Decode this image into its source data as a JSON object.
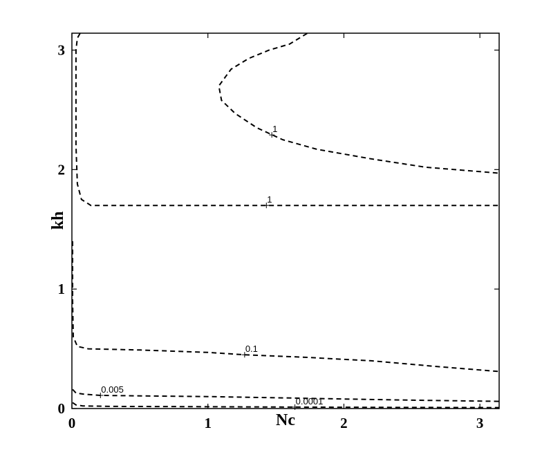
{
  "chart_data": {
    "type": "contour",
    "xlabel": "Nc",
    "ylabel": "kh",
    "xlim": [
      0,
      3.1416
    ],
    "ylim": [
      0,
      3.1416
    ],
    "x_ticks": [
      0,
      1,
      2,
      3
    ],
    "y_ticks": [
      0,
      1,
      2,
      3
    ],
    "x_tick_labels": [
      "0",
      "1",
      "2",
      "3"
    ],
    "y_tick_labels": [
      "0",
      "1",
      "2",
      "3"
    ],
    "line_style": "dashed",
    "grid": false,
    "contours": [
      {
        "level": "1",
        "label_at": [
          1.47,
          2.29
        ],
        "points": [
          [
            1.73,
            3.14
          ],
          [
            1.6,
            3.05
          ],
          [
            1.45,
            3.0
          ],
          [
            1.3,
            2.93
          ],
          [
            1.17,
            2.84
          ],
          [
            1.08,
            2.7
          ],
          [
            1.1,
            2.58
          ],
          [
            1.2,
            2.47
          ],
          [
            1.36,
            2.35
          ],
          [
            1.55,
            2.25
          ],
          [
            1.8,
            2.17
          ],
          [
            2.2,
            2.09
          ],
          [
            2.6,
            2.02
          ],
          [
            3.14,
            1.97
          ]
        ]
      },
      {
        "level": "1",
        "label_at": [
          1.43,
          1.7
        ],
        "points": [
          [
            0.06,
            3.14
          ],
          [
            0.04,
            3.1
          ],
          [
            0.03,
            3.0
          ],
          [
            0.03,
            2.6
          ],
          [
            0.03,
            2.2
          ],
          [
            0.04,
            1.88
          ],
          [
            0.07,
            1.75
          ],
          [
            0.14,
            1.7
          ],
          [
            0.5,
            1.7
          ],
          [
            1.43,
            1.7
          ],
          [
            2.3,
            1.7
          ],
          [
            3.14,
            1.7
          ]
        ]
      },
      {
        "level": "0.1",
        "label_at": [
          1.27,
          0.45
        ],
        "points": [
          [
            0.005,
            1.4
          ],
          [
            0.005,
            0.9
          ],
          [
            0.01,
            0.6
          ],
          [
            0.04,
            0.52
          ],
          [
            0.12,
            0.5
          ],
          [
            0.5,
            0.49
          ],
          [
            1.0,
            0.47
          ],
          [
            1.27,
            0.45
          ],
          [
            1.7,
            0.43
          ],
          [
            2.2,
            0.4
          ],
          [
            2.7,
            0.35
          ],
          [
            3.14,
            0.31
          ]
        ]
      },
      {
        "level": "0.005",
        "label_at": [
          0.21,
          0.11
        ],
        "points": [
          [
            0.005,
            0.16
          ],
          [
            0.03,
            0.13
          ],
          [
            0.09,
            0.12
          ],
          [
            0.21,
            0.11
          ],
          [
            0.6,
            0.105
          ],
          [
            1.0,
            0.1
          ],
          [
            1.5,
            0.09
          ],
          [
            2.0,
            0.08
          ],
          [
            2.5,
            0.07
          ],
          [
            3.14,
            0.06
          ]
        ]
      },
      {
        "level": "0.0001",
        "label_at": [
          1.64,
          0.012
        ],
        "points": [
          [
            0.005,
            0.05
          ],
          [
            0.03,
            0.03
          ],
          [
            0.08,
            0.022
          ],
          [
            0.3,
            0.018
          ],
          [
            0.8,
            0.016
          ],
          [
            1.64,
            0.012
          ],
          [
            2.3,
            0.01
          ],
          [
            3.14,
            0.008
          ]
        ]
      }
    ]
  }
}
